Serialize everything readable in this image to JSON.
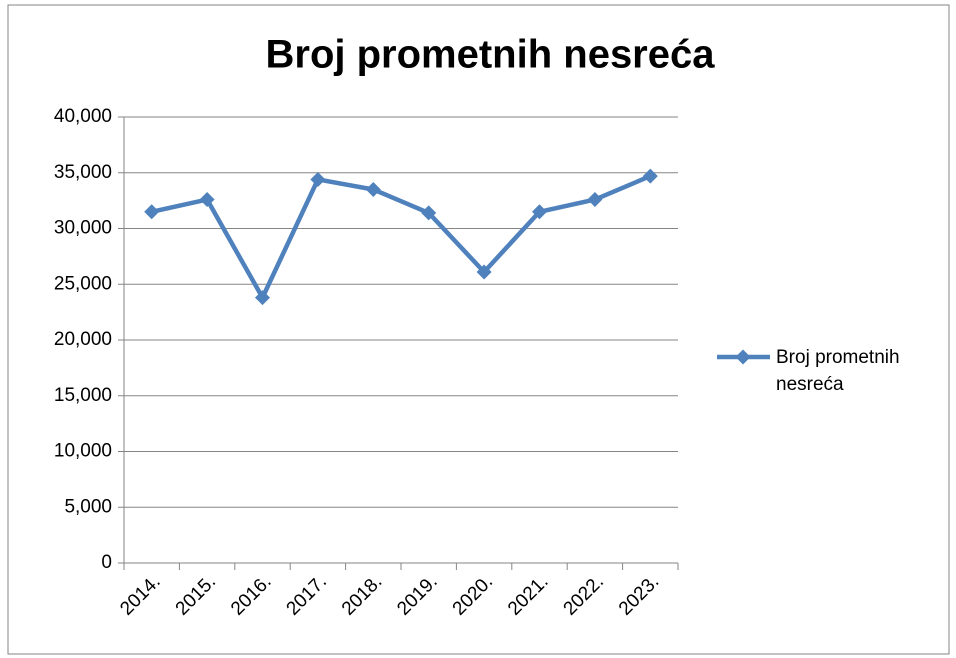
{
  "chart_data": {
    "type": "line",
    "title": "Broj prometnih nesreća",
    "categories": [
      "2014.",
      "2015.",
      "2016.",
      "2017.",
      "2018.",
      "2019.",
      "2020.",
      "2021.",
      "2022.",
      "2023."
    ],
    "series": [
      {
        "name": "Broj prometnih nesreća",
        "color": "#4f81bd",
        "values": [
          31500,
          32600,
          23800,
          34400,
          33500,
          31400,
          26100,
          31500,
          32600,
          34700
        ]
      }
    ],
    "ylim": [
      0,
      40000
    ],
    "yticks": [
      0,
      {
        "value": 5000,
        "label": "5,000"
      },
      {
        "value": 10000,
        "label": "10,000"
      },
      {
        "value": 15000,
        "label": "15,000"
      },
      {
        "value": 20000,
        "label": "20,000"
      },
      {
        "value": 25000,
        "label": "25,000"
      },
      {
        "value": 30000,
        "label": "30,000"
      },
      {
        "value": 35000,
        "label": "35,000"
      },
      {
        "value": 40000,
        "label": "40,000"
      }
    ],
    "grid": true,
    "legend": "right"
  }
}
